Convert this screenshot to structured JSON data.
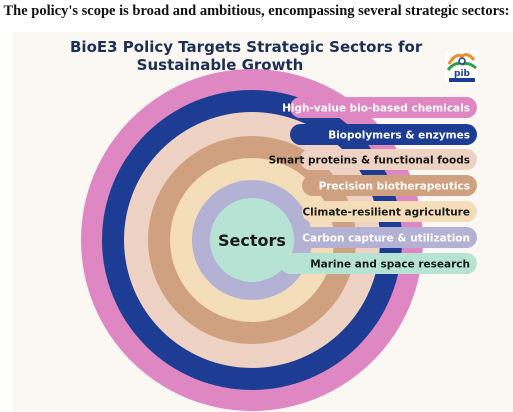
{
  "heading": "The policy's scope is broad and ambitious, encompassing several strategic sectors:",
  "title_line1": "BioE3 Policy Targets Strategic Sectors for",
  "title_line2": "Sustainable Growth",
  "center_label": "Sectors",
  "logo": {
    "text": "pib",
    "icon": "pib-logo-icon"
  },
  "sectors": [
    {
      "label": "High-value bio-based chemicals",
      "color": "#de87c3",
      "text_color": "#ffffff"
    },
    {
      "label": "Biopolymers & enzymes",
      "color": "#1c3d93",
      "text_color": "#ffffff"
    },
    {
      "label": "Smart proteins & functional foods",
      "color": "#eed2c4",
      "text_color": "#1a1a1a"
    },
    {
      "label": "Precision biotherapeutics",
      "color": "#d0a180",
      "text_color": "#ffffff"
    },
    {
      "label": "Climate-resilient agriculture",
      "color": "#f4ddb9",
      "text_color": "#1a1a1a"
    },
    {
      "label": "Carbon capture & utilization",
      "color": "#b4b2d4",
      "text_color": "#ffffff"
    },
    {
      "label": "Marine and space research",
      "color": "#b7e3d5",
      "text_color": "#1a1a1a"
    }
  ]
}
